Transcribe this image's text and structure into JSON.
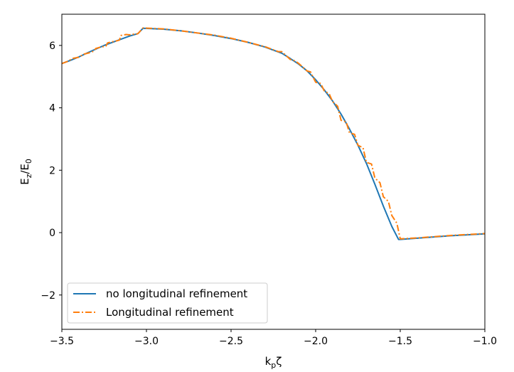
{
  "chart_data": {
    "type": "line",
    "title": "",
    "xlabel": {
      "base": "k",
      "sub": "p",
      "tail": "ζ"
    },
    "ylabel": {
      "base": "E",
      "sub": "z",
      "mid": "/E",
      "sub2": "0"
    },
    "xlim": [
      -3.5,
      -1.0
    ],
    "ylim": [
      -3.1,
      7.0
    ],
    "xticks": [
      -3.5,
      -3.0,
      -2.5,
      -2.0,
      -1.5,
      -1.0
    ],
    "xtick_labels": [
      "−3.5",
      "−3.0",
      "−2.5",
      "−2.0",
      "−1.5",
      "−1.0"
    ],
    "yticks": [
      -2,
      0,
      2,
      4,
      6
    ],
    "ytick_labels": [
      "−2",
      "0",
      "2",
      "4",
      "6"
    ],
    "grid": false,
    "legend_position": "lower-left",
    "series": [
      {
        "name": "no longitudinal refinement",
        "color": "#1f77b4",
        "style": "solid",
        "x": [
          -3.5,
          -3.45,
          -3.4,
          -3.35,
          -3.3,
          -3.25,
          -3.2,
          -3.15,
          -3.1,
          -3.05,
          -3.02,
          -2.9,
          -2.8,
          -2.7,
          -2.6,
          -2.5,
          -2.4,
          -2.3,
          -2.2,
          -2.15,
          -2.1,
          -2.05,
          -2.0,
          -1.95,
          -1.9,
          -1.85,
          -1.8,
          -1.75,
          -1.7,
          -1.65,
          -1.6,
          -1.55,
          -1.51,
          -1.5,
          -1.4,
          -1.3,
          -1.2,
          -1.1,
          -1.0
        ],
        "y": [
          5.42,
          5.52,
          5.63,
          5.76,
          5.88,
          6.0,
          6.1,
          6.2,
          6.3,
          6.38,
          6.55,
          6.52,
          6.47,
          6.4,
          6.32,
          6.22,
          6.1,
          5.95,
          5.75,
          5.58,
          5.4,
          5.18,
          4.9,
          4.58,
          4.22,
          3.8,
          3.32,
          2.8,
          2.22,
          1.55,
          0.85,
          0.2,
          -0.22,
          -0.22,
          -0.18,
          -0.14,
          -0.1,
          -0.07,
          -0.04
        ]
      },
      {
        "name": "Longitudinal refinement",
        "color": "#ff7f0e",
        "style": "dashdot",
        "x": [
          -3.5,
          -3.46,
          -3.44,
          -3.4,
          -3.37,
          -3.34,
          -3.31,
          -3.3,
          -3.27,
          -3.24,
          -3.23,
          -3.2,
          -3.18,
          -3.16,
          -3.15,
          -3.12,
          -3.1,
          -3.08,
          -3.06,
          -3.05,
          -3.02,
          -2.9,
          -2.8,
          -2.7,
          -2.6,
          -2.5,
          -2.4,
          -2.3,
          -2.22,
          -2.2,
          -2.15,
          -2.12,
          -2.1,
          -2.05,
          -2.03,
          -2.0,
          -1.97,
          -1.95,
          -1.92,
          -1.9,
          -1.87,
          -1.85,
          -1.82,
          -1.8,
          -1.77,
          -1.75,
          -1.72,
          -1.7,
          -1.67,
          -1.65,
          -1.62,
          -1.6,
          -1.57,
          -1.55,
          -1.52,
          -1.5,
          -1.4,
          -1.3,
          -1.2,
          -1.1,
          -1.0
        ],
        "y": [
          5.42,
          5.5,
          5.58,
          5.62,
          5.72,
          5.76,
          5.82,
          5.9,
          5.95,
          5.97,
          6.08,
          6.12,
          6.14,
          6.17,
          6.32,
          6.35,
          6.34,
          6.36,
          6.36,
          6.38,
          6.56,
          6.53,
          6.47,
          6.4,
          6.33,
          6.23,
          6.1,
          5.96,
          5.8,
          5.8,
          5.55,
          5.5,
          5.42,
          5.18,
          5.15,
          4.82,
          4.78,
          4.55,
          4.45,
          4.2,
          4.05,
          3.6,
          3.55,
          3.2,
          3.15,
          2.8,
          2.72,
          2.25,
          2.2,
          1.75,
          1.6,
          1.15,
          1.0,
          0.55,
          0.3,
          -0.2,
          -0.17,
          -0.13,
          -0.09,
          -0.06,
          -0.03
        ]
      }
    ]
  }
}
